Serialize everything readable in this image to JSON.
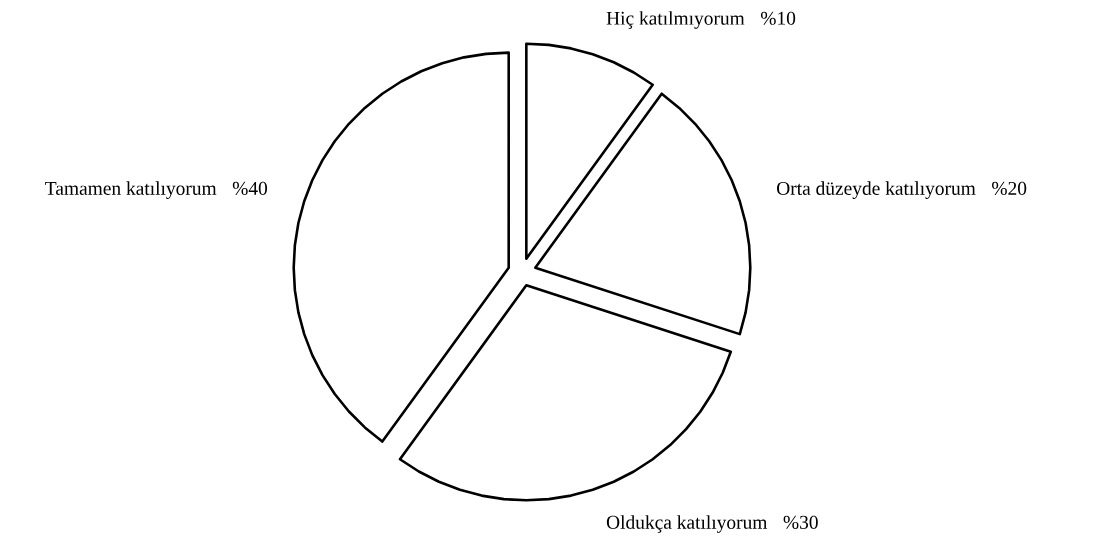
{
  "chart_data": {
    "type": "pie",
    "categories": [
      "Hiç katılmıyorum",
      "Orta düzeyde katılıyorum",
      "Oldukça katılıyorum",
      "Tamamen katılıyorum"
    ],
    "values": [
      10,
      20,
      30,
      40
    ],
    "value_labels": [
      "%10",
      "%20",
      "%30",
      "%40"
    ],
    "colors": [
      "#ffffff",
      "#ffffff",
      "#ffffff",
      "#ffffff"
    ]
  }
}
